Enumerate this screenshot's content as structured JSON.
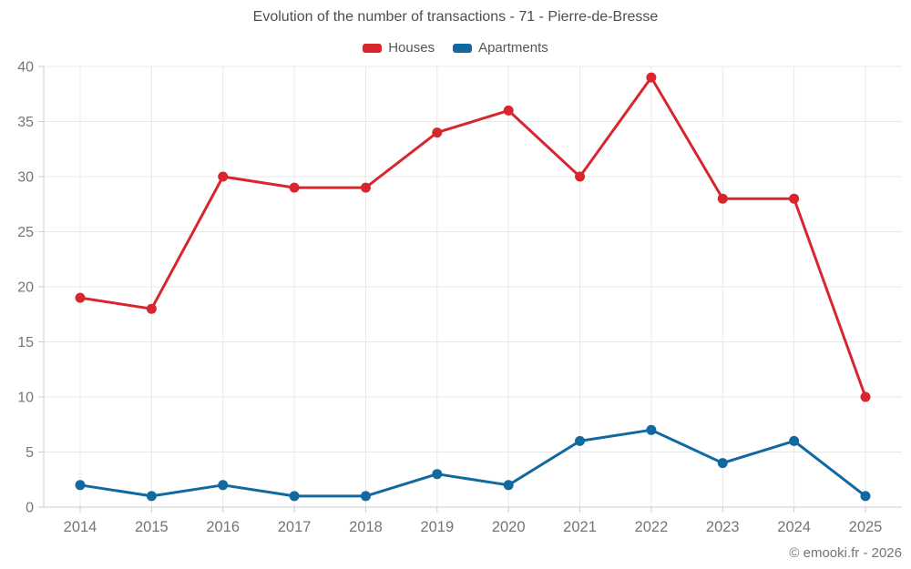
{
  "chart_data": {
    "type": "line",
    "title": "Evolution of the number of transactions - 71 - Pierre-de-Bresse",
    "categories": [
      "2014",
      "2015",
      "2016",
      "2017",
      "2018",
      "2019",
      "2020",
      "2021",
      "2022",
      "2023",
      "2024",
      "2025"
    ],
    "series": [
      {
        "name": "Houses",
        "color": "#d8262e",
        "values": [
          19,
          18,
          30,
          29,
          29,
          34,
          36,
          30,
          39,
          28,
          28,
          10
        ]
      },
      {
        "name": "Apartments",
        "color": "#1269a0",
        "values": [
          2,
          1,
          2,
          1,
          1,
          3,
          2,
          6,
          7,
          4,
          6,
          1
        ]
      }
    ],
    "xlabel": "",
    "ylabel": "",
    "ylim": [
      0,
      40
    ],
    "ytick_step": 5,
    "grid": true,
    "legend_position": "top"
  },
  "footer": {
    "copyright": "© emooki.fr - 2026"
  },
  "colors": {
    "grid": "#e8e8e8",
    "axis": "#cccccc",
    "tick_label": "#757575",
    "title": "#4d4d4d",
    "legend_text": "#555555",
    "background": "#ffffff"
  }
}
